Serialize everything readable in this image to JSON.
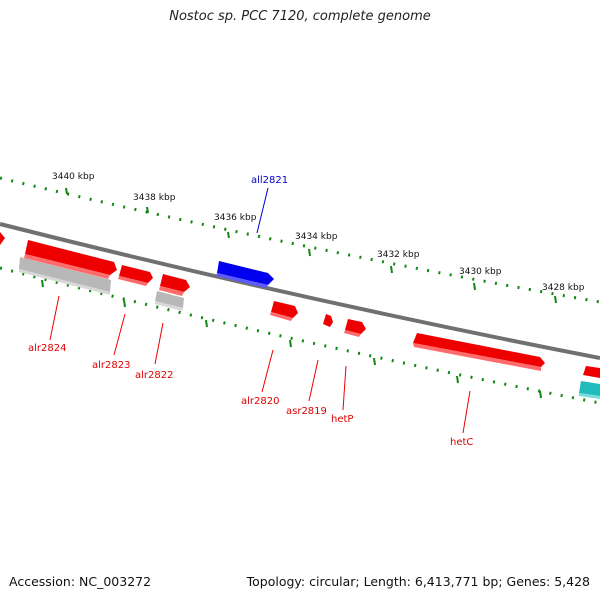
{
  "title": "Nostoc sp. PCC 7120, complete genome",
  "footer": {
    "accession": "Accession: NC_003272",
    "topology": "Topology: circular; Length: 6,413,771 bp; Genes: 5,428"
  },
  "scale_labels": [
    "3440 kbp",
    "3438 kbp",
    "3436 kbp",
    "3434 kbp",
    "3432 kbp",
    "3430 kbp",
    "3428 kbp"
  ],
  "genes": [
    {
      "name": "all2821",
      "strand": "reverse",
      "color": "#0000ee"
    },
    {
      "name": "alr2824",
      "strand": "forward",
      "color": "#ee0000"
    },
    {
      "name": "alr2823",
      "strand": "forward",
      "color": "#ee0000"
    },
    {
      "name": "alr2822",
      "strand": "forward",
      "color": "#ee0000"
    },
    {
      "name": "alr2820",
      "strand": "forward",
      "color": "#ee0000"
    },
    {
      "name": "asr2819",
      "strand": "forward",
      "color": "#ee0000"
    },
    {
      "name": "hetP",
      "strand": "forward",
      "color": "#ee0000"
    },
    {
      "name": "hetC",
      "strand": "forward",
      "color": "#ee0000"
    }
  ],
  "colors": {
    "forward_gene": "#ee0000",
    "reverse_gene": "#0000ee",
    "backbone": "#707070",
    "tick": "#118811",
    "grey_feature": "#b8b8b8",
    "cyan_feature": "#22bbbb"
  }
}
